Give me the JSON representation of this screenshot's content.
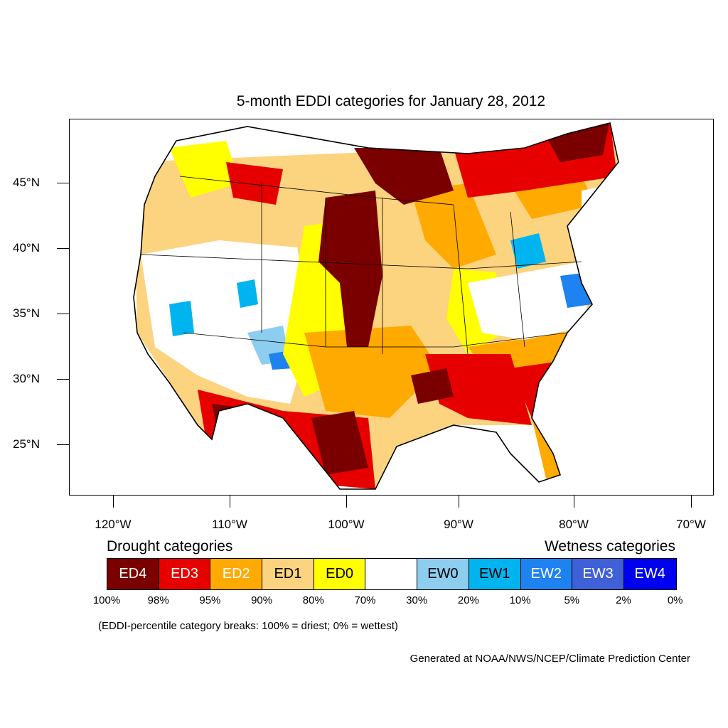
{
  "title": "5-month EDDI categories for January 28, 2012",
  "lat_labels": [
    "45°N",
    "40°N",
    "35°N",
    "30°N",
    "25°N"
  ],
  "lon_labels": [
    "120°W",
    "110°W",
    "100°W",
    "90°W",
    "80°W",
    "70°W"
  ],
  "legend": {
    "drought_heading": "Drought categories",
    "wetness_heading": "Wetness categories",
    "categories": [
      {
        "label": "ED4",
        "color": "#7a0000",
        "text_color": "#ffffff"
      },
      {
        "label": "ED3",
        "color": "#e60000",
        "text_color": "#ffffff"
      },
      {
        "label": "ED2",
        "color": "#ffaa00",
        "text_color": "#ffffff"
      },
      {
        "label": "ED1",
        "color": "#fcd37f",
        "text_color": "#000000"
      },
      {
        "label": "ED0",
        "color": "#ffff00",
        "text_color": "#000000"
      },
      {
        "label": "",
        "color": "#ffffff",
        "text_color": "#000000"
      },
      {
        "label": "EW0",
        "color": "#8ccdf0",
        "text_color": "#000000"
      },
      {
        "label": "EW1",
        "color": "#00b4f0",
        "text_color": "#000000"
      },
      {
        "label": "EW2",
        "color": "#1e82f0",
        "text_color": "#ffffff"
      },
      {
        "label": "EW3",
        "color": "#4060d8",
        "text_color": "#ffffff"
      },
      {
        "label": "EW4",
        "color": "#0000f0",
        "text_color": "#ffffff"
      }
    ],
    "breaks": [
      "100%",
      "98%",
      "95%",
      "90%",
      "80%",
      "70%",
      "30%",
      "20%",
      "10%",
      "5%",
      "2%",
      "0%"
    ]
  },
  "note": "(EDDI-percentile category breaks: 100% = driest; 0% = wettest)",
  "credit": "Generated at NOAA/NWS/NCEP/Climate Prediction Center"
}
